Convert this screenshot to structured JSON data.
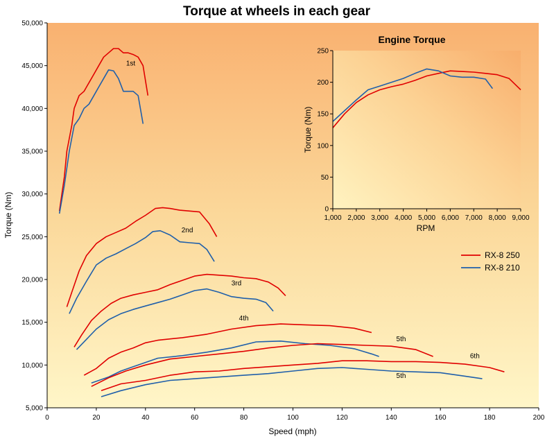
{
  "chart_data": [
    {
      "type": "line",
      "title": "Torque at wheels in each gear",
      "xlabel": "Speed (mph)",
      "ylabel": "Torque  (Nm)",
      "xlim": [
        0,
        200
      ],
      "ylim": [
        5000,
        50000
      ],
      "x_ticks": [
        "0",
        "20",
        "40",
        "60",
        "80",
        "100",
        "120",
        "140",
        "160",
        "180",
        "200"
      ],
      "y_ticks": [
        "5,000",
        "10,000",
        "15,000",
        "20,000",
        "25,000",
        "30,000",
        "35,000",
        "40,000",
        "45,000",
        "50,000"
      ],
      "background": "gradient orange-top to yellow-bottom",
      "grid": false,
      "legend_position": "right",
      "legend": [
        {
          "name": "RX-8 250",
          "color": "#e00000"
        },
        {
          "name": "RX-8 210",
          "color": "#1f5faa"
        }
      ],
      "gear_labels": [
        {
          "text": "1st",
          "x": 34,
          "y": 45000
        },
        {
          "text": "2nd",
          "x": 57,
          "y": 25500
        },
        {
          "text": "3rd",
          "x": 77,
          "y": 19300
        },
        {
          "text": "4th",
          "x": 80,
          "y": 15200
        },
        {
          "text": "5th",
          "x": 144,
          "y": 12800
        },
        {
          "text": "6th",
          "x": 174,
          "y": 10800
        },
        {
          "text": "5th",
          "x": 144,
          "y": 8500
        }
      ],
      "series": [
        {
          "name": "RX-8 250",
          "gear": "1st",
          "color": "#e00000",
          "points": [
            [
              5,
              28000
            ],
            [
              7,
              32000
            ],
            [
              8,
              35000
            ],
            [
              10,
              38000
            ],
            [
              11,
              40000
            ],
            [
              13,
              41500
            ],
            [
              15,
              42000
            ],
            [
              17,
              43000
            ],
            [
              19,
              44000
            ],
            [
              21,
              45000
            ],
            [
              23,
              46000
            ],
            [
              25,
              46500
            ],
            [
              27,
              47000
            ],
            [
              29,
              47000
            ],
            [
              31,
              46500
            ],
            [
              33,
              46500
            ],
            [
              35,
              46300
            ],
            [
              37,
              46000
            ],
            [
              39,
              45000
            ],
            [
              41,
              41500
            ]
          ]
        },
        {
          "name": "RX-8 250",
          "gear": "2nd",
          "color": "#e00000",
          "points": [
            [
              8,
              16800
            ],
            [
              10,
              18500
            ],
            [
              13,
              21000
            ],
            [
              16,
              22800
            ],
            [
              20,
              24200
            ],
            [
              24,
              25000
            ],
            [
              28,
              25500
            ],
            [
              32,
              26000
            ],
            [
              36,
              26800
            ],
            [
              40,
              27500
            ],
            [
              44,
              28300
            ],
            [
              47,
              28400
            ],
            [
              50,
              28300
            ],
            [
              54,
              28100
            ],
            [
              58,
              28000
            ],
            [
              62,
              27900
            ],
            [
              66,
              26500
            ],
            [
              69,
              25000
            ]
          ]
        },
        {
          "name": "RX-8 210",
          "gear": "1st",
          "color": "#1f5faa",
          "points": [
            [
              5,
              27700
            ],
            [
              7,
              31000
            ],
            [
              9,
              35000
            ],
            [
              11,
              38000
            ],
            [
              13,
              38800
            ],
            [
              15,
              40000
            ],
            [
              17,
              40500
            ],
            [
              19,
              41500
            ],
            [
              21,
              42500
            ],
            [
              23,
              43500
            ],
            [
              25,
              44500
            ],
            [
              27,
              44400
            ],
            [
              29,
              43500
            ],
            [
              31,
              42000
            ],
            [
              33,
              42000
            ],
            [
              35,
              42000
            ],
            [
              37,
              41500
            ],
            [
              39,
              38200
            ]
          ]
        },
        {
          "name": "RX-8 210",
          "gear": "2nd",
          "color": "#1f5faa",
          "points": [
            [
              9,
              16000
            ],
            [
              12,
              17800
            ],
            [
              16,
              19800
            ],
            [
              20,
              21700
            ],
            [
              24,
              22500
            ],
            [
              28,
              23000
            ],
            [
              32,
              23600
            ],
            [
              36,
              24200
            ],
            [
              40,
              24900
            ],
            [
              43,
              25600
            ],
            [
              46,
              25700
            ],
            [
              50,
              25200
            ],
            [
              54,
              24400
            ],
            [
              58,
              24300
            ],
            [
              62,
              24200
            ],
            [
              65,
              23500
            ],
            [
              68,
              22100
            ]
          ]
        },
        {
          "name": "RX-8 250",
          "gear": "3rd",
          "color": "#e00000",
          "points": [
            [
              11,
              12100
            ],
            [
              14,
              13500
            ],
            [
              18,
              15200
            ],
            [
              22,
              16300
            ],
            [
              26,
              17200
            ],
            [
              30,
              17800
            ],
            [
              35,
              18200
            ],
            [
              40,
              18500
            ],
            [
              45,
              18800
            ],
            [
              50,
              19400
            ],
            [
              55,
              19900
            ],
            [
              60,
              20400
            ],
            [
              65,
              20600
            ],
            [
              70,
              20500
            ],
            [
              75,
              20400
            ],
            [
              80,
              20200
            ],
            [
              85,
              20100
            ],
            [
              90,
              19700
            ],
            [
              94,
              19000
            ],
            [
              97,
              18100
            ]
          ]
        },
        {
          "name": "RX-8 210",
          "gear": "3rd",
          "color": "#1f5faa",
          "points": [
            [
              12,
              11800
            ],
            [
              16,
              13000
            ],
            [
              20,
              14200
            ],
            [
              25,
              15300
            ],
            [
              30,
              16000
            ],
            [
              35,
              16500
            ],
            [
              40,
              16900
            ],
            [
              45,
              17300
            ],
            [
              50,
              17700
            ],
            [
              55,
              18200
            ],
            [
              60,
              18700
            ],
            [
              65,
              18900
            ],
            [
              70,
              18500
            ],
            [
              75,
              18000
            ],
            [
              80,
              17800
            ],
            [
              85,
              17700
            ],
            [
              89,
              17300
            ],
            [
              92,
              16300
            ]
          ]
        },
        {
          "name": "RX-8 250",
          "gear": "4th",
          "color": "#e00000",
          "points": [
            [
              15,
              8800
            ],
            [
              20,
              9600
            ],
            [
              25,
              10800
            ],
            [
              30,
              11500
            ],
            [
              35,
              12000
            ],
            [
              40,
              12600
            ],
            [
              45,
              12900
            ],
            [
              55,
              13200
            ],
            [
              65,
              13600
            ],
            [
              75,
              14200
            ],
            [
              85,
              14600
            ],
            [
              95,
              14800
            ],
            [
              105,
              14700
            ],
            [
              115,
              14600
            ],
            [
              125,
              14300
            ],
            [
              132,
              13800
            ]
          ]
        },
        {
          "name": "RX-8 210",
          "gear": "4th",
          "color": "#1f5faa",
          "points": [
            [
              18,
              7900
            ],
            [
              25,
              8600
            ],
            [
              30,
              9300
            ],
            [
              35,
              9800
            ],
            [
              40,
              10300
            ],
            [
              45,
              10800
            ],
            [
              55,
              11100
            ],
            [
              65,
              11500
            ],
            [
              75,
              12000
            ],
            [
              85,
              12700
            ],
            [
              95,
              12800
            ],
            [
              105,
              12500
            ],
            [
              115,
              12300
            ],
            [
              125,
              11900
            ],
            [
              132,
              11300
            ],
            [
              135,
              11000
            ]
          ]
        },
        {
          "name": "RX-8 250",
          "gear": "5th",
          "color": "#e00000",
          "points": [
            [
              18,
              7500
            ],
            [
              25,
              8500
            ],
            [
              32,
              9300
            ],
            [
              40,
              10000
            ],
            [
              50,
              10700
            ],
            [
              60,
              11000
            ],
            [
              70,
              11300
            ],
            [
              80,
              11600
            ],
            [
              90,
              12000
            ],
            [
              100,
              12300
            ],
            [
              110,
              12500
            ],
            [
              120,
              12400
            ],
            [
              130,
              12300
            ],
            [
              140,
              12200
            ],
            [
              150,
              11800
            ],
            [
              157,
              11000
            ]
          ]
        },
        {
          "name": "RX-8 210",
          "gear": "5th",
          "color": "#1f5faa",
          "points": [
            [
              22,
              6300
            ],
            [
              30,
              7000
            ],
            [
              40,
              7700
            ],
            [
              50,
              8200
            ],
            [
              60,
              8400
            ],
            [
              70,
              8600
            ],
            [
              80,
              8800
            ],
            [
              90,
              9000
            ],
            [
              100,
              9300
            ],
            [
              110,
              9600
            ],
            [
              120,
              9700
            ],
            [
              130,
              9500
            ],
            [
              140,
              9300
            ],
            [
              150,
              9200
            ],
            [
              160,
              9100
            ],
            [
              170,
              8700
            ],
            [
              177,
              8400
            ]
          ]
        },
        {
          "name": "RX-8 250",
          "gear": "6th",
          "color": "#e00000",
          "points": [
            [
              22,
              7000
            ],
            [
              30,
              7800
            ],
            [
              40,
              8200
            ],
            [
              50,
              8800
            ],
            [
              60,
              9200
            ],
            [
              70,
              9300
            ],
            [
              80,
              9600
            ],
            [
              90,
              9800
            ],
            [
              100,
              10000
            ],
            [
              110,
              10200
            ],
            [
              120,
              10500
            ],
            [
              130,
              10500
            ],
            [
              140,
              10400
            ],
            [
              150,
              10400
            ],
            [
              160,
              10300
            ],
            [
              170,
              10100
            ],
            [
              180,
              9700
            ],
            [
              186,
              9200
            ]
          ]
        }
      ]
    },
    {
      "type": "line",
      "title": "Engine Torque",
      "xlabel": "RPM",
      "ylabel": "Torque  (Nm)",
      "xlim": [
        1000,
        9000
      ],
      "ylim": [
        0,
        250
      ],
      "x_ticks": [
        "1,000",
        "2,000",
        "3,000",
        "4,000",
        "5,000",
        "6,000",
        "7,000",
        "8,000",
        "9,000"
      ],
      "y_ticks": [
        "0",
        "50",
        "100",
        "150",
        "200",
        "250"
      ],
      "grid": false,
      "series": [
        {
          "name": "RX-8 250",
          "color": "#e00000",
          "points": [
            [
              1000,
              128
            ],
            [
              1500,
              150
            ],
            [
              2000,
              168
            ],
            [
              2500,
              180
            ],
            [
              3000,
              188
            ],
            [
              3500,
              193
            ],
            [
              4000,
              197
            ],
            [
              4500,
              203
            ],
            [
              5000,
              210
            ],
            [
              5500,
              214
            ],
            [
              6000,
              218
            ],
            [
              6500,
              217
            ],
            [
              7000,
              216
            ],
            [
              7500,
              214
            ],
            [
              8000,
              212
            ],
            [
              8500,
              206
            ],
            [
              9000,
              188
            ]
          ]
        },
        {
          "name": "RX-8 210",
          "color": "#1f5faa",
          "points": [
            [
              1000,
              138
            ],
            [
              1500,
              155
            ],
            [
              2000,
              172
            ],
            [
              2500,
              188
            ],
            [
              3000,
              194
            ],
            [
              3500,
              200
            ],
            [
              4000,
              206
            ],
            [
              4500,
              214
            ],
            [
              5000,
              221
            ],
            [
              5500,
              218
            ],
            [
              6000,
              210
            ],
            [
              6500,
              208
            ],
            [
              7000,
              208
            ],
            [
              7500,
              205
            ],
            [
              7800,
              190
            ]
          ]
        }
      ]
    }
  ]
}
